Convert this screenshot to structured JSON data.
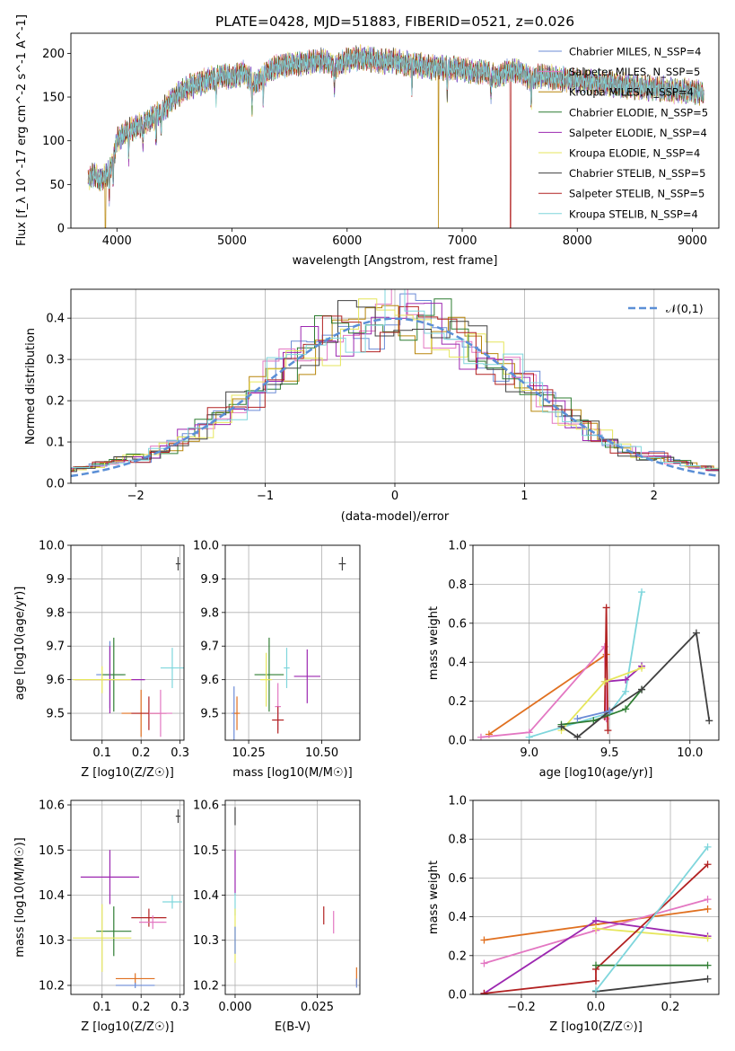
{
  "chart_data": [
    {
      "id": "spectrum",
      "type": "line",
      "title": "PLATE=0428, MJD=51883, FIBERID=0521, z=0.026",
      "xlabel": "wavelength [Angstrom, rest frame]",
      "ylabel": "Flux [f_λ 10^-17 erg cm^-2 s^-1 A^-1]",
      "xlim": [
        3600,
        9230
      ],
      "ylim": [
        0,
        223
      ],
      "xticks": [
        4000,
        5000,
        6000,
        7000,
        8000,
        9000
      ],
      "yticks": [
        0,
        50,
        100,
        150,
        200
      ],
      "grid": false,
      "legend": "top-right",
      "series": [
        {
          "name": "Chabrier MILES, N_SSP=4",
          "color": "#6b8bd6"
        },
        {
          "name": "Salpeter MILES, N_SSP=5",
          "color": "#e377c2"
        },
        {
          "name": "Kroupa MILES, N_SSP=4",
          "color": "#b8860b"
        },
        {
          "name": "Chabrier ELODIE, N_SSP=5",
          "color": "#2e7d32"
        },
        {
          "name": "Salpeter ELODIE, N_SSP=4",
          "color": "#9c27b0"
        },
        {
          "name": "Kroupa ELODIE, N_SSP=4",
          "color": "#e6e65c"
        },
        {
          "name": "Chabrier STELIB, N_SSP=5",
          "color": "#404040"
        },
        {
          "name": "Salpeter STELIB, N_SSP=5",
          "color": "#b22222"
        },
        {
          "name": "Kroupa STELIB, N_SSP=4",
          "color": "#7fd6dc"
        }
      ],
      "continuum": [
        [
          3750,
          55
        ],
        [
          3800,
          62
        ],
        [
          3850,
          55
        ],
        [
          3900,
          60
        ],
        [
          3950,
          70
        ],
        [
          4000,
          100
        ],
        [
          4100,
          112
        ],
        [
          4200,
          118
        ],
        [
          4300,
          125
        ],
        [
          4400,
          135
        ],
        [
          4500,
          150
        ],
        [
          4600,
          160
        ],
        [
          4700,
          165
        ],
        [
          4800,
          170
        ],
        [
          4900,
          175
        ],
        [
          5000,
          172
        ],
        [
          5100,
          178
        ],
        [
          5200,
          165
        ],
        [
          5300,
          178
        ],
        [
          5400,
          185
        ],
        [
          5500,
          188
        ],
        [
          5600,
          188
        ],
        [
          5700,
          190
        ],
        [
          5800,
          192
        ],
        [
          5900,
          185
        ],
        [
          6000,
          192
        ],
        [
          6100,
          195
        ],
        [
          6200,
          194
        ],
        [
          6300,
          190
        ],
        [
          6400,
          192
        ],
        [
          6500,
          188
        ],
        [
          6600,
          187
        ],
        [
          6700,
          184
        ],
        [
          6800,
          184
        ],
        [
          6900,
          183
        ],
        [
          7000,
          182
        ],
        [
          7100,
          178
        ],
        [
          7200,
          180
        ],
        [
          7300,
          172
        ],
        [
          7400,
          180
        ],
        [
          7500,
          180
        ],
        [
          7600,
          170
        ],
        [
          7700,
          175
        ],
        [
          7800,
          172
        ],
        [
          7900,
          170
        ],
        [
          8000,
          168
        ],
        [
          8100,
          168
        ],
        [
          8200,
          166
        ],
        [
          8300,
          165
        ],
        [
          8400,
          163
        ],
        [
          8500,
          162
        ],
        [
          8600,
          160
        ],
        [
          8700,
          160
        ],
        [
          8800,
          158
        ],
        [
          8900,
          157
        ],
        [
          9000,
          156
        ],
        [
          9100,
          155
        ]
      ],
      "dropouts": [
        {
          "x": 3900,
          "series": "Kroupa MILES, N_SSP=4"
        },
        {
          "x": 6795,
          "series": "Kroupa MILES, N_SSP=4"
        },
        {
          "x": 7420,
          "series": "Salpeter STELIB, N_SSP=5"
        }
      ]
    },
    {
      "id": "residuals",
      "type": "line",
      "xlabel": "(data-model)/error",
      "ylabel": "Normed distribution",
      "xlim": [
        -2.5,
        2.5
      ],
      "ylim": [
        0,
        0.47
      ],
      "xticks": [
        -2,
        -1,
        0,
        1,
        2
      ],
      "yticks": [
        0.0,
        0.1,
        0.2,
        0.3,
        0.4
      ],
      "grid": true,
      "legend": "top-right",
      "reference": {
        "name": "𝒩(0,1)",
        "color": "#5b8fd6"
      }
    },
    {
      "id": "age-vs-Z",
      "type": "scatter",
      "xlabel": "Z [log10(Z/Z☉)]",
      "ylabel": "age  [log10(age/yr)]",
      "xlim": [
        0.02,
        0.31
      ],
      "ylim": [
        9.42,
        10.0
      ],
      "xticks": [
        0.1,
        0.2,
        0.3
      ],
      "yticks": [
        9.5,
        9.6,
        9.7,
        9.8,
        9.9,
        10.0
      ],
      "grid": true,
      "points": [
        {
          "x": 0.295,
          "y": 9.945,
          "xerr": 0.006,
          "yerr": 0.02,
          "color": "#404040"
        },
        {
          "x": 0.12,
          "y": 9.615,
          "xerr": 0.035,
          "yerr": 0.1,
          "color": "#6b8bd6"
        },
        {
          "x": 0.13,
          "y": 9.615,
          "xerr": 0.03,
          "yerr": 0.11,
          "color": "#2e7d32"
        },
        {
          "x": 0.12,
          "y": 9.6,
          "xerr": 0.09,
          "yerr": 0.1,
          "color": "#9c27b0"
        },
        {
          "x": 0.1,
          "y": 9.6,
          "xerr": 0.075,
          "yerr": 0.04,
          "color": "#e6e65c"
        },
        {
          "x": 0.28,
          "y": 9.635,
          "xerr": 0.03,
          "yerr": 0.06,
          "color": "#7fd6dc"
        },
        {
          "x": 0.2,
          "y": 9.5,
          "xerr": 0.05,
          "yerr": 0.07,
          "color": "#e07020"
        },
        {
          "x": 0.22,
          "y": 9.5,
          "xerr": 0.045,
          "yerr": 0.05,
          "color": "#b22222"
        },
        {
          "x": 0.25,
          "y": 9.5,
          "xerr": 0.03,
          "yerr": 0.07,
          "color": "#e377c2"
        }
      ]
    },
    {
      "id": "age-vs-mass",
      "type": "scatter",
      "xlabel": "mass [log10(M/M☉)]",
      "ylabel": "",
      "xlim": [
        10.17,
        10.63
      ],
      "ylim": [
        9.42,
        10.0
      ],
      "xticks": [
        10.25,
        10.5
      ],
      "yticks": [
        9.5,
        9.6,
        9.7,
        9.8,
        9.9,
        10.0
      ],
      "grid": true,
      "points": [
        {
          "x": 10.57,
          "y": 9.945,
          "xerr": 0.012,
          "yerr": 0.02,
          "color": "#404040"
        },
        {
          "x": 10.32,
          "y": 9.615,
          "xerr": 0.05,
          "yerr": 0.11,
          "color": "#2e7d32"
        },
        {
          "x": 10.31,
          "y": 9.6,
          "xerr": 0.02,
          "yerr": 0.08,
          "color": "#e6e65c"
        },
        {
          "x": 10.38,
          "y": 9.635,
          "xerr": 0.01,
          "yerr": 0.06,
          "color": "#7fd6dc"
        },
        {
          "x": 10.45,
          "y": 9.61,
          "xerr": 0.045,
          "yerr": 0.08,
          "color": "#9c27b0"
        },
        {
          "x": 10.2,
          "y": 9.5,
          "xerr": 0.008,
          "yerr": 0.08,
          "color": "#6b8bd6"
        },
        {
          "x": 10.21,
          "y": 9.5,
          "xerr": 0.01,
          "yerr": 0.05,
          "color": "#e07020"
        },
        {
          "x": 10.35,
          "y": 9.52,
          "xerr": 0.01,
          "yerr": 0.07,
          "color": "#e377c2"
        },
        {
          "x": 10.35,
          "y": 9.48,
          "xerr": 0.02,
          "yerr": 0.04,
          "color": "#b22222"
        }
      ]
    },
    {
      "id": "weight-vs-age",
      "type": "line",
      "xlabel": "age  [log10(age/yr)]",
      "ylabel": "mass weight",
      "xlim": [
        8.65,
        10.18
      ],
      "ylim": [
        0,
        1.0
      ],
      "xticks": [
        9.0,
        9.5,
        10.0
      ],
      "yticks": [
        0.0,
        0.2,
        0.4,
        0.6,
        0.8,
        1.0
      ],
      "grid": true,
      "series": [
        {
          "color": "#e07020",
          "points": [
            [
              8.75,
              0.03
            ],
            [
              9.48,
              0.44
            ]
          ]
        },
        {
          "color": "#e377c2",
          "points": [
            [
              8.7,
              0.015
            ],
            [
              9.0,
              0.04
            ],
            [
              9.47,
              0.48
            ],
            [
              9.48,
              0.11
            ]
          ]
        },
        {
          "color": "#b22222",
          "points": [
            [
              9.47,
              0.12
            ],
            [
              9.48,
              0.68
            ],
            [
              9.49,
              0.05
            ]
          ]
        },
        {
          "color": "#7fd6dc",
          "points": [
            [
              9.0,
              0.015
            ],
            [
              9.5,
              0.14
            ],
            [
              9.6,
              0.25
            ],
            [
              9.7,
              0.76
            ]
          ]
        },
        {
          "color": "#9c27b0",
          "points": [
            [
              9.47,
              0.3
            ],
            [
              9.6,
              0.31
            ],
            [
              9.7,
              0.38
            ]
          ]
        },
        {
          "color": "#e6e65c",
          "points": [
            [
              9.2,
              0.05
            ],
            [
              9.47,
              0.3
            ],
            [
              9.7,
              0.37
            ]
          ]
        },
        {
          "color": "#2e7d32",
          "points": [
            [
              9.2,
              0.08
            ],
            [
              9.4,
              0.1
            ],
            [
              9.6,
              0.16
            ],
            [
              9.7,
              0.26
            ]
          ]
        },
        {
          "color": "#404040",
          "points": [
            [
              9.2,
              0.07
            ],
            [
              9.3,
              0.015
            ],
            [
              9.5,
              0.15
            ],
            [
              9.7,
              0.26
            ],
            [
              10.04,
              0.55
            ],
            [
              10.12,
              0.1
            ]
          ]
        },
        {
          "color": "#6b8bd6",
          "points": [
            [
              9.3,
              0.11
            ],
            [
              9.5,
              0.15
            ]
          ]
        }
      ]
    },
    {
      "id": "mass-vs-Z",
      "type": "scatter",
      "xlabel": "Z [log10(Z/Z☉)]",
      "ylabel": "mass [log10(M/M☉)]",
      "xlim": [
        0.02,
        0.31
      ],
      "ylim": [
        10.18,
        10.61
      ],
      "xticks": [
        0.1,
        0.2,
        0.3
      ],
      "yticks": [
        10.2,
        10.3,
        10.4,
        10.5,
        10.6
      ],
      "grid": true,
      "points": [
        {
          "x": 0.295,
          "y": 10.575,
          "xerr": 0.006,
          "yerr": 0.015,
          "color": "#404040"
        },
        {
          "x": 0.12,
          "y": 10.44,
          "xerr": 0.075,
          "yerr": 0.06,
          "color": "#9c27b0"
        },
        {
          "x": 0.28,
          "y": 10.385,
          "xerr": 0.025,
          "yerr": 0.015,
          "color": "#7fd6dc"
        },
        {
          "x": 0.22,
          "y": 10.35,
          "xerr": 0.045,
          "yerr": 0.02,
          "color": "#b22222"
        },
        {
          "x": 0.23,
          "y": 10.34,
          "xerr": 0.035,
          "yerr": 0.015,
          "color": "#e377c2"
        },
        {
          "x": 0.13,
          "y": 10.32,
          "xerr": 0.045,
          "yerr": 0.055,
          "color": "#2e7d32"
        },
        {
          "x": 0.1,
          "y": 10.305,
          "xerr": 0.075,
          "yerr": 0.075,
          "color": "#e6e65c"
        },
        {
          "x": 0.185,
          "y": 10.215,
          "xerr": 0.05,
          "yerr": 0.012,
          "color": "#e07020"
        },
        {
          "x": 0.185,
          "y": 10.2,
          "xerr": 0.05,
          "yerr": 0.006,
          "color": "#6b8bd6"
        }
      ]
    },
    {
      "id": "mass-vs-EBV",
      "type": "scatter",
      "xlabel": "E(B-V)",
      "ylabel": "",
      "xlim": [
        -0.003,
        0.038
      ],
      "ylim": [
        10.18,
        10.61
      ],
      "xticks": [
        0.0,
        0.025
      ],
      "yticks": [
        10.2,
        10.3,
        10.4,
        10.5,
        10.6
      ],
      "xticklabels": [
        "0.000",
        "0.025"
      ],
      "grid": true,
      "points": [
        {
          "x": 0.0,
          "y": 10.575,
          "xerr": 0.0,
          "yerr": 0.02,
          "color": "#404040"
        },
        {
          "x": 0.0,
          "y": 10.45,
          "xerr": 0.0,
          "yerr": 0.05,
          "color": "#9c27b0"
        },
        {
          "x": 0.0,
          "y": 10.38,
          "xerr": 0.0,
          "yerr": 0.025,
          "color": "#7fd6dc"
        },
        {
          "x": 0.0,
          "y": 10.31,
          "xerr": 0.0,
          "yerr": 0.06,
          "color": "#e6e65c"
        },
        {
          "x": 0.0,
          "y": 10.3,
          "xerr": 0.0,
          "yerr": 0.03,
          "color": "#6b8bd6"
        },
        {
          "x": 0.027,
          "y": 10.355,
          "xerr": 0.0,
          "yerr": 0.02,
          "color": "#b22222"
        },
        {
          "x": 0.03,
          "y": 10.34,
          "xerr": 0.0,
          "yerr": 0.025,
          "color": "#e377c2"
        },
        {
          "x": 0.037,
          "y": 10.22,
          "xerr": 0.0,
          "yerr": 0.02,
          "color": "#e07020"
        },
        {
          "x": 0.037,
          "y": 10.205,
          "xerr": 0.0,
          "yerr": 0.01,
          "color": "#6b8bd6"
        }
      ]
    },
    {
      "id": "weight-vs-Z",
      "type": "line",
      "xlabel": "Z [log10(Z/Z☉)]",
      "ylabel": "mass weight",
      "xlim": [
        -0.33,
        0.33
      ],
      "ylim": [
        0,
        1.0
      ],
      "xticks": [
        -0.2,
        0.0,
        0.2
      ],
      "yticks": [
        0.0,
        0.2,
        0.4,
        0.6,
        0.8,
        1.0
      ],
      "xticklabels": [
        "−0.2",
        "0.0",
        "0.2"
      ],
      "grid": true,
      "series": [
        {
          "color": "#e07020",
          "points": [
            [
              -0.3,
              0.28
            ],
            [
              0.0,
              0.36
            ],
            [
              0.3,
              0.44
            ]
          ]
        },
        {
          "color": "#e377c2",
          "points": [
            [
              -0.3,
              0.16
            ],
            [
              0.0,
              0.33
            ],
            [
              0.3,
              0.49
            ]
          ]
        },
        {
          "color": "#9c27b0",
          "points": [
            [
              -0.3,
              0.005
            ],
            [
              0.0,
              0.38
            ],
            [
              0.3,
              0.3
            ]
          ]
        },
        {
          "color": "#e6e65c",
          "points": [
            [
              0.0,
              0.34
            ],
            [
              0.3,
              0.29
            ]
          ]
        },
        {
          "color": "#b22222",
          "points": [
            [
              -0.3,
              0.005
            ],
            [
              0.0,
              0.07
            ],
            [
              0.0,
              0.13
            ],
            [
              0.3,
              0.67
            ]
          ]
        },
        {
          "color": "#2e7d32",
          "points": [
            [
              0.0,
              0.15
            ],
            [
              0.3,
              0.15
            ]
          ]
        },
        {
          "color": "#404040",
          "points": [
            [
              0.0,
              0.015
            ],
            [
              0.3,
              0.08
            ]
          ]
        },
        {
          "color": "#7fd6dc",
          "points": [
            [
              0.0,
              0.02
            ],
            [
              0.3,
              0.76
            ]
          ]
        }
      ]
    }
  ]
}
